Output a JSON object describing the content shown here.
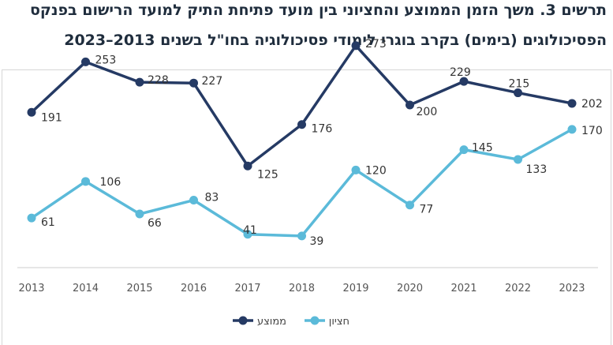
{
  "title": {
    "line1": "תרשים 3. משך הזמן הממוצע והחציוני בין מועד פתיחת התיק למועד הרישום בפנקס",
    "line2": "הפסיכולוגים (בימים) בקרב בוגרי לימודי פסיכולוגיה בחו\"ל בשנים 2013–2023"
  },
  "chart_data": {
    "type": "line",
    "x": [
      "2013",
      "2014",
      "2015",
      "2016",
      "2017",
      "2018",
      "2019",
      "2020",
      "2021",
      "2022",
      "2023"
    ],
    "series": [
      {
        "name": "ממוצע",
        "color": "#253a64",
        "values": [
          191,
          253,
          228,
          227,
          125,
          176,
          273,
          200,
          229,
          215,
          202
        ]
      },
      {
        "name": "חציון",
        "color": "#5bbad9",
        "values": [
          61,
          106,
          66,
          83,
          41,
          39,
          120,
          77,
          145,
          133,
          170
        ]
      }
    ],
    "ylim": [
      0,
      300
    ],
    "grid": false,
    "legend": "bottom-center"
  }
}
